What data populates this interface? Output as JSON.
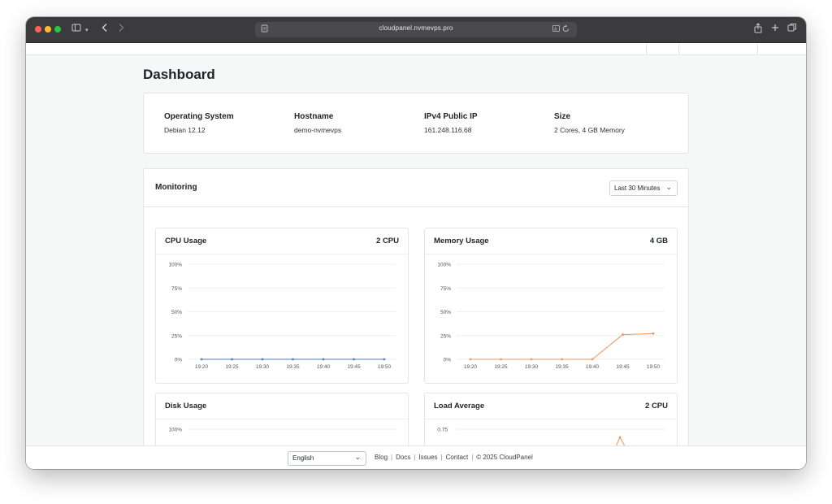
{
  "browser": {
    "url": "cloudpanel.nvmevps.pro",
    "icons": [
      "sidebar-icon",
      "chevron-left-icon",
      "chevron-right-icon",
      "share-icon",
      "plus-icon",
      "tabs-icon",
      "translate-icon",
      "reload-icon"
    ]
  },
  "page": {
    "title": "Dashboard"
  },
  "info": [
    {
      "label": "Operating System",
      "value": "Debian 12.12"
    },
    {
      "label": "Hostname",
      "value": "demo-nvmevps"
    },
    {
      "label": "IPv4 Public IP",
      "value": "161.248.116.68"
    },
    {
      "label": "Size",
      "value": "2 Cores, 4 GB Memory"
    }
  ],
  "monitoring": {
    "title": "Monitoring",
    "range": "Last 30 Minutes",
    "charts": [
      {
        "title": "CPU Usage",
        "meta": "2 CPU"
      },
      {
        "title": "Memory Usage",
        "meta": "4 GB"
      },
      {
        "title": "Disk Usage",
        "meta": ""
      },
      {
        "title": "Load Average",
        "meta": "2 CPU"
      }
    ]
  },
  "chart_data": [
    {
      "type": "line",
      "title": "CPU Usage",
      "x": [
        "19:20",
        "19:25",
        "19:30",
        "19:35",
        "19:40",
        "19:45",
        "19:50"
      ],
      "y_ticks": [
        "0%",
        "25%",
        "50%",
        "75%",
        "100%"
      ],
      "ylim": [
        0,
        100
      ],
      "color": "#4a7fc4",
      "series": [
        {
          "values": [
            0,
            0,
            0,
            0,
            0,
            0,
            0
          ]
        }
      ]
    },
    {
      "type": "line",
      "title": "Memory Usage",
      "x": [
        "19:20",
        "19:25",
        "19:30",
        "19:35",
        "19:40",
        "19:45",
        "19:50"
      ],
      "y_ticks": [
        "0%",
        "25%",
        "50%",
        "75%",
        "100%"
      ],
      "ylim": [
        0,
        100
      ],
      "color": "#f0955a",
      "series": [
        {
          "values": [
            0,
            0,
            0,
            0,
            0,
            26,
            27
          ]
        }
      ]
    },
    {
      "type": "line",
      "title": "Disk Usage",
      "y_ticks": [
        "100%"
      ],
      "ylim": [
        0,
        100
      ],
      "color": "#4a7fc4"
    },
    {
      "type": "line",
      "title": "Load Average",
      "y_ticks": [
        "0.75"
      ],
      "color": "#f0955a",
      "series": [
        {
          "visible_points": [
            {
              "x": "19:45",
              "y": 0.67
            }
          ]
        }
      ]
    }
  ],
  "footer": {
    "language": "English",
    "links": [
      "Blog",
      "Docs",
      "Issues",
      "Contact"
    ],
    "copyright": "© 2025  CloudPanel"
  }
}
